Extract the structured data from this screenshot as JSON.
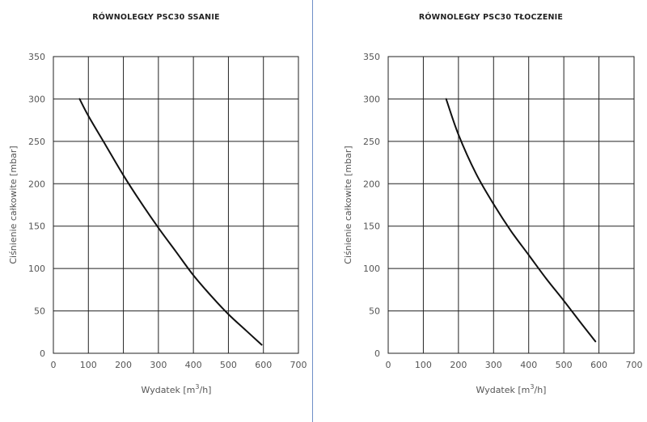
{
  "chart_data": [
    {
      "type": "line",
      "title": "RÓWNOLEGŁY PSC30 SSANIE",
      "xlabel": "Wydatek [m",
      "xlabel_sup": "3",
      "xlabel_end": "/h]",
      "ylabel": "Ciśnienie całkowite [mbar]",
      "xlim": [
        0,
        700
      ],
      "ylim": [
        0,
        350
      ],
      "xticks": [
        0,
        100,
        200,
        300,
        400,
        500,
        600,
        700
      ],
      "yticks": [
        0,
        50,
        100,
        150,
        200,
        250,
        300,
        350
      ],
      "grid": true,
      "series": [
        {
          "x": [
            75,
            100,
            150,
            200,
            250,
            300,
            350,
            400,
            450,
            500,
            550,
            595
          ],
          "y": [
            300,
            280,
            245,
            210,
            178,
            148,
            120,
            92,
            68,
            46,
            27,
            10
          ]
        }
      ]
    },
    {
      "type": "line",
      "title": "RÓWNOLEGŁY PSC30 TŁOCZENIE",
      "xlabel": "Wydatek [m",
      "xlabel_sup": "3",
      "xlabel_end": "/h]",
      "ylabel": "Ciśnienie całkowite [mbar]",
      "xlim": [
        0,
        700
      ],
      "ylim": [
        0,
        350
      ],
      "xticks": [
        0,
        100,
        200,
        300,
        400,
        500,
        600,
        700
      ],
      "yticks": [
        0,
        50,
        100,
        150,
        200,
        250,
        300,
        350
      ],
      "grid": true,
      "series": [
        {
          "x": [
            165,
            200,
            250,
            300,
            350,
            400,
            450,
            500,
            550,
            590
          ],
          "y": [
            300,
            258,
            212,
            176,
            144,
            116,
            88,
            62,
            35,
            14
          ]
        }
      ]
    }
  ]
}
